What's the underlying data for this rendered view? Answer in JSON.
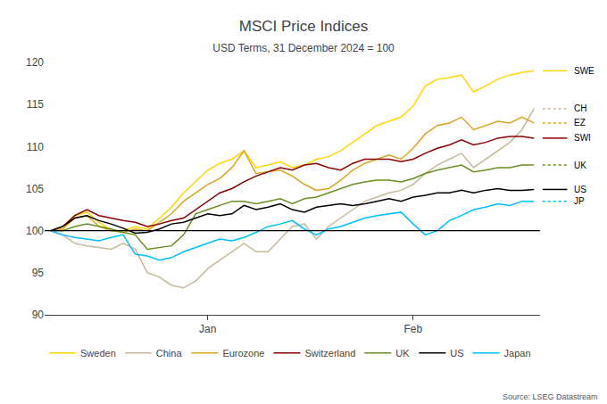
{
  "chart_data": {
    "type": "line",
    "title": "MSCI Price Indices",
    "subtitle": "USD Terms, 31 December 2024 = 100",
    "source": "Source: LSEG Datastream",
    "categories": [
      null,
      null,
      null,
      null,
      null,
      null,
      null,
      null,
      null,
      null,
      null,
      null,
      null,
      "Jan",
      null,
      null,
      null,
      null,
      null,
      null,
      null,
      null,
      null,
      null,
      null,
      null,
      null,
      null,
      null,
      null,
      "Feb",
      null,
      null,
      null,
      null,
      null,
      null,
      null,
      null,
      null,
      null
    ],
    "series": [
      {
        "name": "Sweden",
        "color": "#FFD700",
        "line_style": "solid",
        "values": [
          100.0,
          100.2,
          101.8,
          102.2,
          101.0,
          100.0,
          100.0,
          100.5,
          100.2,
          101.5,
          102.8,
          104.5,
          105.8,
          107.2,
          108.0,
          108.5,
          109.5,
          107.5,
          107.8,
          108.2,
          107.5,
          107.8,
          108.5,
          108.8,
          109.5,
          110.5,
          111.5,
          112.5,
          113.0,
          113.5,
          114.8,
          117.2,
          118.0,
          118.2,
          118.5,
          116.5,
          117.2,
          118.0,
          118.5,
          118.8,
          119.0
        ]
      },
      {
        "name": "China",
        "color": "#C8B89A",
        "line_style": "solid",
        "values": [
          100.0,
          99.5,
          98.5,
          98.2,
          98.0,
          97.8,
          98.5,
          97.8,
          95.0,
          94.5,
          93.5,
          93.2,
          94.0,
          95.5,
          96.5,
          97.5,
          98.5,
          97.5,
          97.5,
          99.0,
          100.5,
          100.8,
          99.0,
          100.5,
          101.5,
          102.5,
          103.5,
          104.0,
          104.5,
          104.8,
          105.5,
          106.8,
          107.8,
          108.5,
          109.2,
          107.5,
          108.5,
          109.5,
          110.5,
          112.0,
          114.5
        ]
      },
      {
        "name": "Eurozone",
        "color": "#DAA520",
        "line_style": "solid",
        "values": [
          100.0,
          100.2,
          101.5,
          101.8,
          100.5,
          100.0,
          99.8,
          100.2,
          100.0,
          101.0,
          102.0,
          103.5,
          104.5,
          105.5,
          106.2,
          107.5,
          109.5,
          106.8,
          107.0,
          107.2,
          106.5,
          105.5,
          104.8,
          105.0,
          106.0,
          107.2,
          108.0,
          108.5,
          109.0,
          108.5,
          109.8,
          111.5,
          112.5,
          112.8,
          113.5,
          112.0,
          112.5,
          113.0,
          112.8,
          113.5,
          112.8
        ]
      },
      {
        "name": "Switzerland",
        "color": "#8B0000",
        "line_style": "solid",
        "values": [
          100.0,
          100.5,
          101.8,
          102.5,
          101.8,
          101.5,
          101.2,
          101.0,
          100.5,
          100.8,
          101.2,
          101.5,
          102.5,
          103.5,
          104.5,
          105.0,
          105.8,
          106.5,
          107.0,
          107.5,
          107.2,
          107.8,
          108.0,
          107.5,
          107.2,
          108.0,
          108.5,
          108.5,
          108.5,
          108.2,
          108.5,
          109.2,
          109.8,
          110.2,
          110.8,
          110.2,
          110.5,
          111.0,
          111.2,
          111.2,
          111.0
        ]
      },
      {
        "name": "UK",
        "color": "#6B8E23",
        "line_style": "solid",
        "values": [
          100.0,
          100.0,
          100.5,
          100.8,
          100.5,
          100.2,
          99.8,
          99.5,
          97.8,
          98.0,
          98.2,
          99.5,
          102.0,
          102.5,
          103.0,
          103.5,
          103.5,
          103.2,
          103.5,
          103.8,
          103.2,
          103.8,
          104.0,
          104.5,
          105.0,
          105.5,
          105.8,
          106.0,
          106.0,
          105.8,
          106.2,
          106.8,
          107.2,
          107.5,
          107.8,
          107.0,
          107.2,
          107.5,
          107.5,
          107.8,
          107.8
        ]
      },
      {
        "name": "US",
        "color": "#000000",
        "line_style": "solid",
        "values": [
          100.0,
          100.5,
          101.5,
          101.8,
          101.2,
          100.8,
          100.3,
          99.7,
          99.8,
          100.2,
          100.8,
          101.0,
          101.5,
          102.0,
          101.8,
          102.0,
          103.0,
          102.5,
          102.8,
          103.2,
          102.5,
          102.2,
          102.8,
          103.0,
          103.2,
          103.0,
          103.2,
          103.5,
          103.8,
          103.5,
          104.0,
          104.2,
          104.5,
          104.5,
          104.8,
          104.5,
          104.8,
          105.0,
          104.8,
          104.8,
          104.9
        ]
      },
      {
        "name": "Japan",
        "color": "#00BFFF",
        "line_style": "solid",
        "values": [
          100.0,
          99.5,
          99.2,
          99.0,
          98.8,
          99.2,
          99.5,
          97.2,
          97.0,
          96.5,
          96.8,
          97.5,
          98.0,
          98.5,
          99.0,
          98.8,
          99.2,
          99.8,
          100.5,
          100.8,
          101.2,
          100.2,
          99.5,
          100.2,
          100.5,
          101.0,
          101.5,
          101.8,
          102.0,
          102.2,
          100.8,
          99.5,
          100.0,
          101.2,
          101.8,
          102.5,
          102.8,
          103.2,
          103.0,
          103.5,
          103.5
        ]
      }
    ],
    "annotations": [
      {
        "text": "SWE",
        "y": 119.0,
        "color": "#FFD700",
        "line_style": "solid"
      },
      {
        "text": "CH",
        "y": 114.5,
        "color": "#C8B89A",
        "line_style": "dotted"
      },
      {
        "text": "EZ",
        "y": 112.8,
        "color": "#DAA520",
        "line_style": "dotted"
      },
      {
        "text": "SWI",
        "y": 111.0,
        "color": "#8B0000",
        "line_style": "solid"
      },
      {
        "text": "UK",
        "y": 107.8,
        "color": "#6B8E23",
        "line_style": "dotted"
      },
      {
        "text": "US",
        "y": 104.9,
        "color": "#000000",
        "line_style": "solid"
      },
      {
        "text": "JP",
        "y": 103.5,
        "color": "#00BFFF",
        "line_style": "dotted"
      }
    ],
    "hline": {
      "y": 100,
      "color": "#000000"
    },
    "ylim": [
      90,
      120
    ],
    "yticks": [
      90,
      95,
      100,
      105,
      110,
      115,
      120
    ],
    "grid": false,
    "legend": "bottom"
  }
}
